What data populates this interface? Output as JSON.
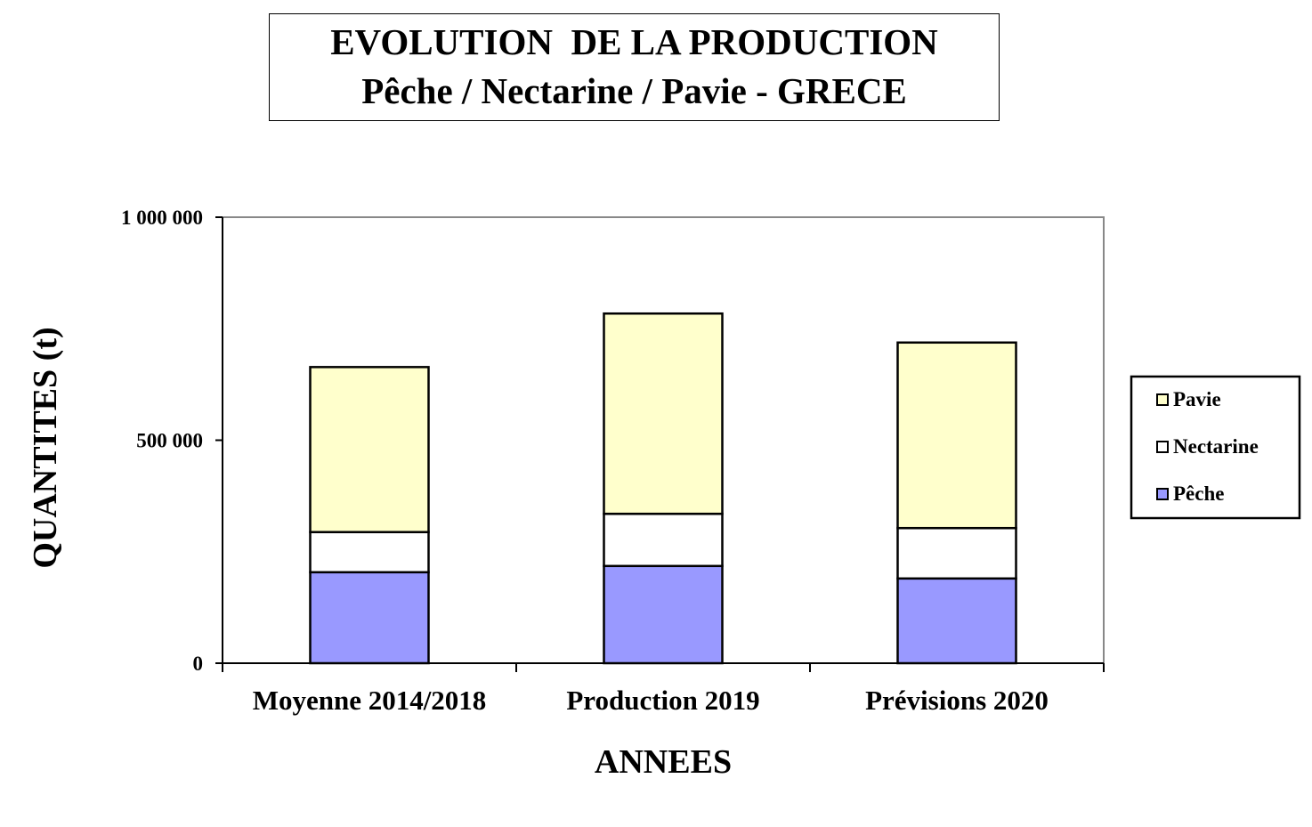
{
  "chart_data": {
    "type": "bar",
    "stacked": true,
    "title": "EVOLUTION  DE LA PRODUCTION",
    "subtitle": "Pêche / Nectarine / Pavie - GRECE",
    "xlabel": "ANNEES",
    "ylabel": "QUANTITES (t)",
    "ylim": [
      0,
      1000000
    ],
    "yticks": [
      0,
      500000,
      1000000
    ],
    "ytick_labels": [
      "0",
      "500 000",
      "1 000 000"
    ],
    "categories": [
      "Moyenne 2014/2018",
      "Production 2019",
      "Prévisions 2020"
    ],
    "series": [
      {
        "name": "Pêche",
        "color": "#9999ff",
        "values": [
          204000,
          218000,
          190000
        ]
      },
      {
        "name": "Nectarine",
        "color": "#ffffff",
        "values": [
          90000,
          117000,
          113000
        ]
      },
      {
        "name": "Pavie",
        "color": "#ffffcc",
        "values": [
          370000,
          449000,
          416000
        ]
      }
    ],
    "legend_order": [
      "Pavie",
      "Nectarine",
      "Pêche"
    ],
    "legend_position": "right",
    "grid": false
  }
}
